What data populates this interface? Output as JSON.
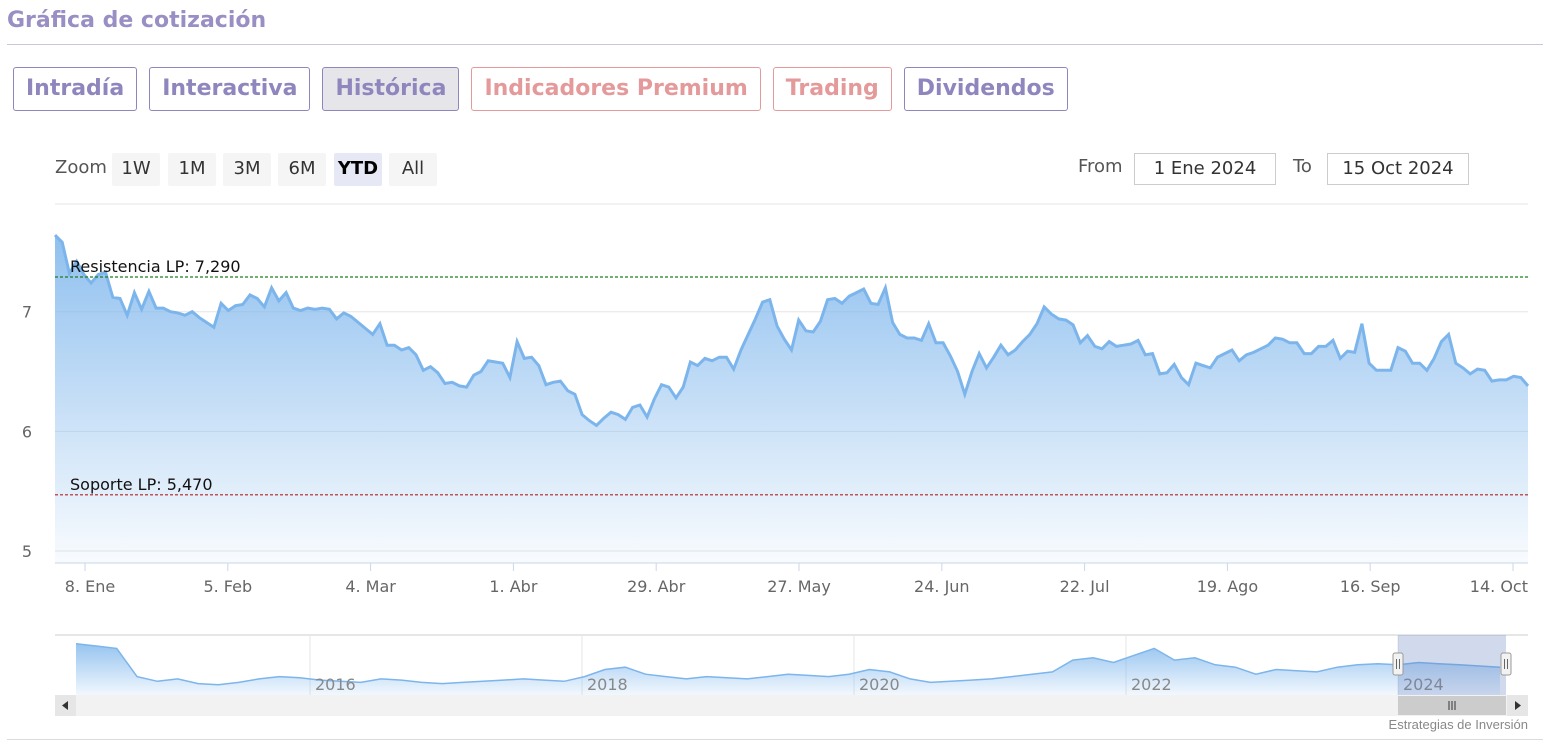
{
  "header": {
    "title": "Gráfica de cotización"
  },
  "tabs": [
    {
      "label": "Intradía",
      "style": "normal"
    },
    {
      "label": "Interactiva",
      "style": "normal"
    },
    {
      "label": "Histórica",
      "style": "active"
    },
    {
      "label": "Indicadores Premium",
      "style": "premium"
    },
    {
      "label": "Trading",
      "style": "premium"
    },
    {
      "label": "Dividendos",
      "style": "normal"
    }
  ],
  "zoom": {
    "label": "Zoom",
    "buttons": [
      "1W",
      "1M",
      "3M",
      "6M",
      "YTD",
      "All"
    ],
    "selected": "YTD"
  },
  "range": {
    "from_label": "From",
    "from_value": "1 Ene 2024",
    "to_label": "To",
    "to_value": "15 Oct 2024"
  },
  "colors": {
    "brand": "#9a8fc4",
    "premium": "#e49a9a",
    "line": "#7cb5ec",
    "resistance": "#1a7f1a",
    "support": "#b22222"
  },
  "chart_data": {
    "type": "area",
    "title": "",
    "ylim": [
      4.9,
      7.9
    ],
    "yticks": [
      5,
      6,
      7
    ],
    "x_tick_labels": [
      "8. Ene",
      "5. Feb",
      "4. Mar",
      "1. Abr",
      "29. Abr",
      "27. May",
      "24. Jun",
      "22. Jul",
      "19. Ago",
      "16. Sep",
      "14. Oct"
    ],
    "grid": true,
    "series": [
      {
        "values": [
          7.64,
          7.58,
          7.32,
          7.42,
          7.31,
          7.24,
          7.31,
          7.33,
          7.12,
          7.11,
          6.97,
          7.16,
          7.02,
          7.17,
          7.03,
          7.03,
          7.0,
          6.99,
          6.97,
          7.0,
          6.95,
          6.91,
          6.87,
          7.07,
          7.01,
          7.05,
          7.06,
          7.14,
          7.11,
          7.04,
          7.2,
          7.09,
          7.16,
          7.03,
          7.01,
          7.03,
          7.02,
          7.03,
          7.02,
          6.94,
          6.99,
          6.96,
          6.91,
          6.86,
          6.81,
          6.9,
          6.72,
          6.72,
          6.68,
          6.7,
          6.64,
          6.51,
          6.54,
          6.49,
          6.4,
          6.41,
          6.38,
          6.37,
          6.47,
          6.5,
          6.59,
          6.58,
          6.57,
          6.45,
          6.75,
          6.61,
          6.62,
          6.55,
          6.39,
          6.41,
          6.42,
          6.34,
          6.31,
          6.14,
          6.09,
          6.05,
          6.11,
          6.16,
          6.14,
          6.1,
          6.2,
          6.22,
          6.12,
          6.27,
          6.39,
          6.37,
          6.28,
          6.37,
          6.58,
          6.55,
          6.61,
          6.59,
          6.62,
          6.62,
          6.52,
          6.68,
          6.81,
          6.94,
          7.08,
          7.1,
          6.88,
          6.77,
          6.68,
          6.93,
          6.84,
          6.83,
          6.92,
          7.1,
          7.11,
          7.07,
          7.13,
          7.16,
          7.19,
          7.07,
          7.06,
          7.2,
          6.91,
          6.81,
          6.78,
          6.78,
          6.76,
          6.9,
          6.74,
          6.74,
          6.63,
          6.5,
          6.31,
          6.5,
          6.65,
          6.53,
          6.62,
          6.72,
          6.64,
          6.68,
          6.75,
          6.81,
          6.9,
          7.04,
          6.98,
          6.94,
          6.93,
          6.89,
          6.74,
          6.8,
          6.71,
          6.69,
          6.75,
          6.71,
          6.72,
          6.73,
          6.76,
          6.64,
          6.65,
          6.48,
          6.49,
          6.56,
          6.45,
          6.39,
          6.57,
          6.55,
          6.53,
          6.62,
          6.65,
          6.68,
          6.59,
          6.64,
          6.66,
          6.69,
          6.72,
          6.78,
          6.77,
          6.74,
          6.74,
          6.65,
          6.65,
          6.71,
          6.71,
          6.76,
          6.61,
          6.67,
          6.66,
          6.9,
          6.57,
          6.51,
          6.51,
          6.51,
          6.7,
          6.67,
          6.57,
          6.57,
          6.51,
          6.61,
          6.75,
          6.81,
          6.57,
          6.53,
          6.48,
          6.52,
          6.51,
          6.42,
          6.43,
          6.43,
          6.46,
          6.45,
          6.38
        ]
      }
    ],
    "annotations": [
      {
        "label": "Resistencia LP: 7,290",
        "value": 7.29,
        "color": "#1a7f1a"
      },
      {
        "label": "Soporte LP: 5,470",
        "value": 5.47,
        "color": "#b22222"
      }
    ],
    "navigator": {
      "year_labels": [
        "2016",
        "2018",
        "2020",
        "2022",
        "2024"
      ],
      "values": [
        7.6,
        7.5,
        7.4,
        6.2,
        6.0,
        6.1,
        5.9,
        5.85,
        5.95,
        6.1,
        6.2,
        6.15,
        6.05,
        6.0,
        5.95,
        6.1,
        6.05,
        5.95,
        5.9,
        5.95,
        6.0,
        6.05,
        6.1,
        6.05,
        6.0,
        6.2,
        6.5,
        6.6,
        6.3,
        6.2,
        6.1,
        6.2,
        6.15,
        6.1,
        6.2,
        6.3,
        6.25,
        6.2,
        6.3,
        6.5,
        6.4,
        6.1,
        5.95,
        6.0,
        6.05,
        6.1,
        6.2,
        6.3,
        6.4,
        6.9,
        7.0,
        6.8,
        7.1,
        7.4,
        6.9,
        7.0,
        6.7,
        6.6,
        6.3,
        6.5,
        6.45,
        6.4,
        6.6,
        6.7,
        6.75,
        6.7,
        6.8,
        6.75,
        6.7,
        6.65,
        6.6
      ]
    },
    "credit": "Estrategias de Inversión"
  }
}
